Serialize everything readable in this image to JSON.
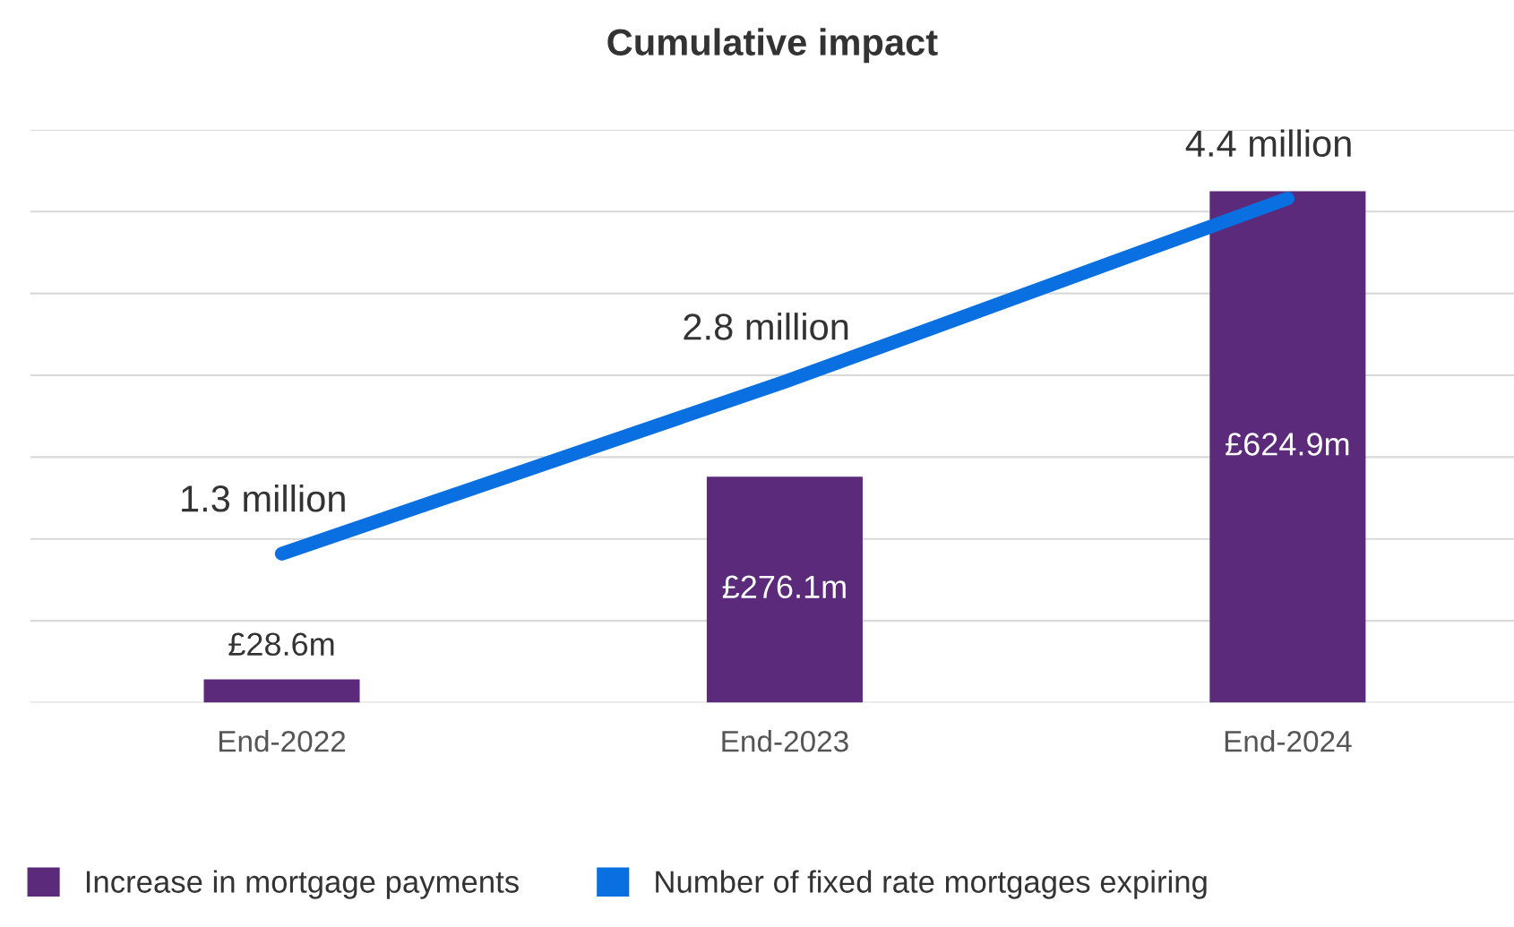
{
  "chart_data": {
    "type": "bar",
    "title": "Cumulative impact",
    "categories": [
      "End-2022",
      "End-2023",
      "End-2024"
    ],
    "series": [
      {
        "name": "Increase in mortgage payments",
        "color": "#5b2a7b",
        "values": [
          28.6,
          276.1,
          624.9
        ],
        "value_labels": [
          "£28.6m",
          "£276.1m",
          "£624.9m"
        ]
      },
      {
        "name": "Number of fixed rate mortgages expiring",
        "type": "line",
        "axis": "y2",
        "color": "#0a6fe0",
        "values": [
          1.3,
          2.8,
          4.4
        ],
        "value_labels": [
          "1.3 million",
          "2.8 million",
          "4.4 million"
        ]
      }
    ],
    "ylim": [
      0,
      700
    ],
    "yticks": [
      {
        "value": 0,
        "label": null
      },
      {
        "value": 100,
        "label": null
      },
      {
        "value": 200,
        "label": null
      },
      {
        "value": 300,
        "label": null
      },
      {
        "value": 400,
        "label": null
      },
      {
        "value": 500,
        "label": null
      },
      {
        "value": 600,
        "label": null
      },
      {
        "value": 700,
        "label": null
      }
    ],
    "y2lim": [
      0,
      5
    ],
    "grid": "y",
    "legend": "bottom",
    "tick_labels": "x",
    "line_style": "solid"
  }
}
